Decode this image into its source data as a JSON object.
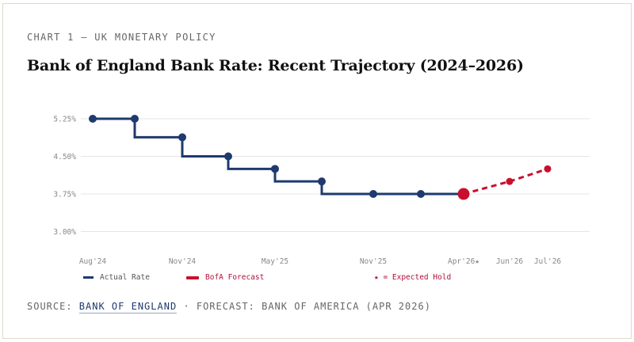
{
  "header": {
    "kicker": "CHART 1 — UK MONETARY POLICY",
    "title": "Bank of England Bank Rate: Recent Trajectory (2024–2026)"
  },
  "colors": {
    "actual": "#1e3a6e",
    "forecast": "#c8102e",
    "grid": "#e4e4e4"
  },
  "chart_data": {
    "type": "line",
    "title": "Bank of England Bank Rate: Recent Trajectory (2024–2026)",
    "ylim": [
      3.0,
      5.25
    ],
    "y_ticks": [
      "5.25%",
      "4.50%",
      "3.75%",
      "3.00%"
    ],
    "y_tick_values": [
      5.25,
      4.5,
      3.75,
      3.0
    ],
    "x_tick_labels": [
      {
        "label": "Aug'24",
        "point": 0,
        "style": "actual"
      },
      {
        "label": "Nov'24",
        "point": 2,
        "style": "actual"
      },
      {
        "label": "May'25",
        "point": 4,
        "style": "actual"
      },
      {
        "label": "Nov'25",
        "point": 6,
        "style": "actual"
      },
      {
        "label": "Apr'26★",
        "point": 8,
        "style": "forecast"
      },
      {
        "label": "Jun'26",
        "point": 9,
        "style": "forecast"
      },
      {
        "label": "Jul'26",
        "point": 10,
        "style": "forecast"
      }
    ],
    "grid": true,
    "series": [
      {
        "name": "Actual Rate",
        "style": "step",
        "values": [
          5.25,
          5.25,
          4.88,
          4.5,
          4.25,
          4.0,
          3.75,
          3.75,
          3.75
        ],
        "point_index": [
          0,
          1,
          2,
          3,
          4,
          5,
          6,
          7,
          8
        ]
      },
      {
        "name": "BofA Forecast",
        "style": "dashed",
        "values": [
          3.75,
          4.0,
          4.25
        ],
        "point_index": [
          8,
          9,
          10
        ]
      }
    ],
    "legend": {
      "position": "bottom",
      "items": [
        "Actual Rate",
        "BofA Forecast"
      ],
      "note": "★ = Expected Hold"
    }
  },
  "footer": {
    "source_prefix": "SOURCE: ",
    "source_link": "BANK OF ENGLAND",
    "source_suffix": " · FORECAST: BANK OF AMERICA (APR 2026)"
  }
}
